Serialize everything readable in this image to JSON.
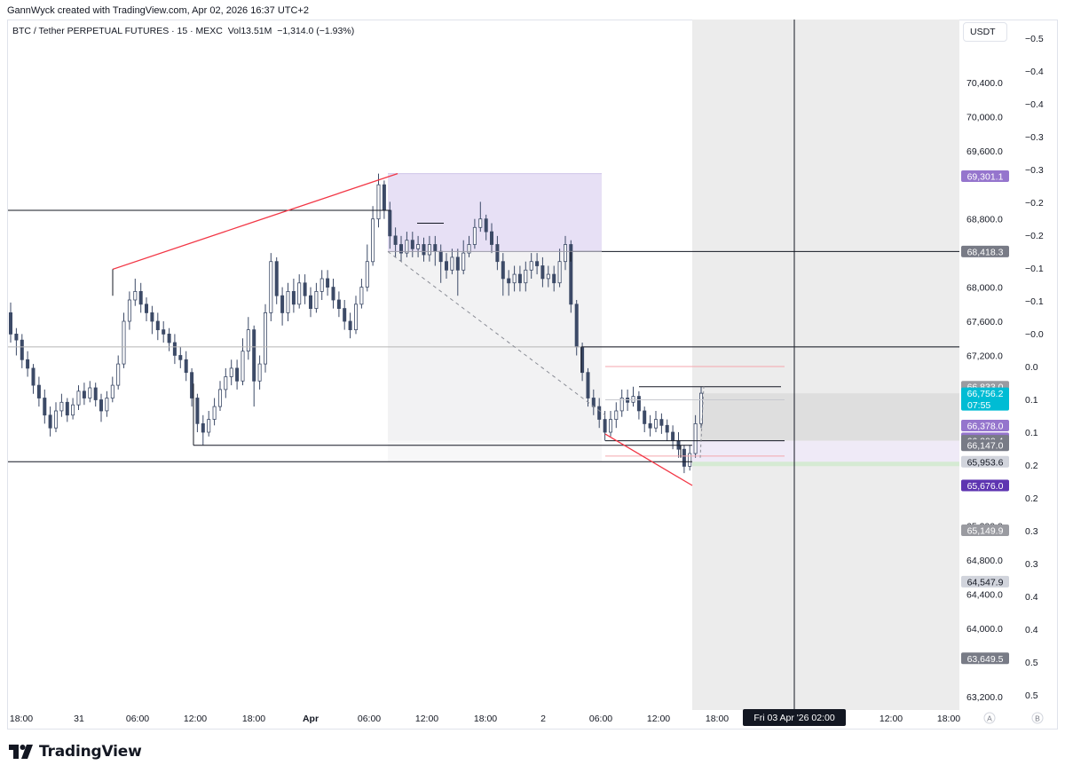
{
  "credit": "GannWyck created with TradingView.com, Apr 02, 2026 16:37 UTC+2",
  "symbol": {
    "title": "BTC / Tether PERPETUAL FUTURES · 15 · MEXC",
    "vol_label": "Vol",
    "vol_value": "13.51M",
    "change": "−1,314.0 (−1.93%)"
  },
  "currency": "USDT",
  "brand": "TradingView",
  "colors": {
    "candle": "#3c4a67",
    "trendline": "#f23645",
    "purple_zone": "#e7e0f5",
    "grey_zone": "#ececec",
    "price_tag_grey": "#787b86",
    "price_tag_purple": "#9575cd",
    "price_tag_dark_purple": "#5e35b1",
    "price_tag_cyan": "#00bcd4"
  },
  "chart_data": {
    "type": "candlestick",
    "timeframe": "15",
    "exchange": "MEXC",
    "ylim": [
      63000,
      70800
    ],
    "y_ticks": [
      "70,400.0",
      "70,000.0",
      "69,600.0",
      "68,800.0",
      "68,000.0",
      "67,600.0",
      "67,200.0",
      "65,200.0",
      "64,800.0",
      "64,400.0",
      "64,000.0",
      "63,200.0"
    ],
    "osc_ticks": [
      "−0.5",
      "−0.4",
      "−0.4",
      "−0.3",
      "−0.3",
      "−0.2",
      "−0.2",
      "−0.1",
      "−0.1",
      "−0.0",
      "0.0",
      "0.1",
      "0.1",
      "0.2",
      "0.2",
      "0.3",
      "0.3",
      "0.4",
      "0.4",
      "0.5",
      "0.5"
    ],
    "x_ticks": [
      "18:00",
      "31",
      "06:00",
      "12:00",
      "18:00",
      "Apr",
      "06:00",
      "12:00",
      "18:00",
      "2",
      "06:00",
      "12:00",
      "18:00",
      "12:00",
      "18:00"
    ],
    "cursor_label": "Fri 03 Apr '26  02:00",
    "scale_buttons": [
      "A",
      "B"
    ],
    "price_tags": [
      {
        "value": "69,301.1",
        "color": "#9575cd"
      },
      {
        "value": "68,418.3",
        "color": "#787b86"
      },
      {
        "value": "66,833.0",
        "color": "#9a9ba1"
      },
      {
        "value": "66,756.2",
        "color": "#00bcd4",
        "countdown": "07:55"
      },
      {
        "value": "66,378.0",
        "color": "#9575cd"
      },
      {
        "value": "66,228.0",
        "color": "#9575cd"
      },
      {
        "value": "66,200.4",
        "color": "#787b86"
      },
      {
        "value": "66,147.0",
        "color": "#787b86"
      },
      {
        "value": "65,953.6",
        "color": "#d1d4dc"
      },
      {
        "value": "65,676.0",
        "color": "#5e35b1"
      },
      {
        "value": "65,149.9",
        "color": "#9a9ba1"
      },
      {
        "value": "64,547.9",
        "color": "#d1d4dc"
      },
      {
        "value": "63,649.5",
        "color": "#787b86"
      }
    ],
    "levels": [
      68900,
      68418.3,
      67300,
      66833,
      66147,
      65953.6
    ],
    "trend_high": {
      "start": 68210,
      "end": 69331
    },
    "trend_low": {
      "start": 66278,
      "end": 65676
    },
    "candles": [
      [
        67700,
        67450,
        67820,
        67350
      ],
      [
        67450,
        67380,
        67520,
        67200
      ],
      [
        67380,
        67150,
        67450,
        67050
      ],
      [
        67150,
        67050,
        67250,
        66950
      ],
      [
        67050,
        66850,
        67100,
        66750
      ],
      [
        66850,
        66700,
        66950,
        66600
      ],
      [
        66700,
        66500,
        66800,
        66400
      ],
      [
        66500,
        66350,
        66600,
        66250
      ],
      [
        66350,
        66550,
        66650,
        66300
      ],
      [
        66550,
        66650,
        66750,
        66480
      ],
      [
        66650,
        66500,
        66700,
        66420
      ],
      [
        66500,
        66620,
        66700,
        66450
      ],
      [
        66620,
        66780,
        66850,
        66560
      ],
      [
        66780,
        66700,
        66880,
        66620
      ],
      [
        66700,
        66820,
        66900,
        66650
      ],
      [
        66820,
        66680,
        66880,
        66600
      ],
      [
        66680,
        66550,
        66750,
        66420
      ],
      [
        66550,
        66700,
        66780,
        66480
      ],
      [
        66700,
        66850,
        66950,
        66650
      ],
      [
        66850,
        67100,
        67200,
        66800
      ],
      [
        67100,
        67600,
        67700,
        67050
      ],
      [
        67600,
        67850,
        67950,
        67500
      ],
      [
        67850,
        67950,
        68100,
        67780
      ],
      [
        67950,
        67800,
        68050,
        67700
      ],
      [
        67800,
        67700,
        67880,
        67600
      ],
      [
        67700,
        67600,
        67780,
        67450
      ],
      [
        67600,
        67500,
        67700,
        67380
      ],
      [
        67500,
        67450,
        67600,
        67350
      ],
      [
        67450,
        67350,
        67520,
        67250
      ],
      [
        67350,
        67200,
        67450,
        67100
      ],
      [
        67200,
        67150,
        67300,
        67050
      ],
      [
        67150,
        67000,
        67250,
        66900
      ],
      [
        67000,
        66700,
        67050,
        66600
      ],
      [
        66700,
        66400,
        66750,
        66300
      ],
      [
        66400,
        66300,
        66500,
        66150
      ],
      [
        66300,
        66450,
        66550,
        66250
      ],
      [
        66450,
        66600,
        66700,
        66380
      ],
      [
        66600,
        66800,
        66900,
        66550
      ],
      [
        66800,
        66950,
        67050,
        66700
      ],
      [
        66950,
        67050,
        67150,
        66850
      ],
      [
        67050,
        66900,
        67150,
        66800
      ],
      [
        66900,
        67250,
        67400,
        66850
      ],
      [
        67250,
        67500,
        67650,
        67150
      ],
      [
        67500,
        66900,
        67550,
        66600
      ],
      [
        66900,
        67100,
        67200,
        66800
      ],
      [
        67100,
        67700,
        67800,
        67000
      ],
      [
        67700,
        68300,
        68400,
        67600
      ],
      [
        68300,
        67900,
        68350,
        67800
      ],
      [
        67900,
        67700,
        68000,
        67550
      ],
      [
        67700,
        67950,
        68050,
        67600
      ],
      [
        67950,
        67800,
        68100,
        67700
      ],
      [
        67800,
        68050,
        68150,
        67750
      ],
      [
        68050,
        67900,
        68150,
        67800
      ],
      [
        67900,
        67750,
        68000,
        67650
      ],
      [
        67750,
        67950,
        68050,
        67700
      ],
      [
        67950,
        68100,
        68200,
        67850
      ],
      [
        68100,
        68000,
        68200,
        67900
      ],
      [
        68000,
        67850,
        68100,
        67750
      ],
      [
        67850,
        67750,
        67950,
        67650
      ],
      [
        67750,
        67600,
        67850,
        67500
      ],
      [
        67600,
        67500,
        67700,
        67400
      ],
      [
        67500,
        67800,
        67900,
        67450
      ],
      [
        67800,
        68000,
        68100,
        67750
      ],
      [
        68000,
        68300,
        68500,
        67950
      ],
      [
        68300,
        68800,
        68950,
        68250
      ],
      [
        68800,
        69200,
        69331,
        68700
      ],
      [
        69200,
        68900,
        69250,
        68800
      ],
      [
        68900,
        68600,
        69000,
        68450
      ],
      [
        68600,
        68500,
        68700,
        68350
      ],
      [
        68500,
        68400,
        68600,
        68300
      ],
      [
        68400,
        68550,
        68650,
        68350
      ],
      [
        68550,
        68450,
        68650,
        68350
      ],
      [
        68450,
        68500,
        68600,
        68350
      ],
      [
        68500,
        68380,
        68580,
        68300
      ],
      [
        68380,
        68500,
        68600,
        68300
      ],
      [
        68500,
        68420,
        68600,
        68250
      ],
      [
        68420,
        68300,
        68500,
        68050
      ],
      [
        68300,
        68200,
        68400,
        68100
      ],
      [
        68200,
        68350,
        68450,
        68150
      ],
      [
        68350,
        68200,
        68450,
        67900
      ],
      [
        68200,
        68400,
        68550,
        68150
      ],
      [
        68400,
        68500,
        68600,
        68350
      ],
      [
        68500,
        68700,
        68800,
        68450
      ],
      [
        68700,
        68800,
        69000,
        68650
      ],
      [
        68800,
        68650,
        68850,
        68550
      ],
      [
        68650,
        68500,
        68750,
        68400
      ],
      [
        68500,
        68300,
        68600,
        68200
      ],
      [
        68300,
        68100,
        68400,
        67900
      ],
      [
        68100,
        68050,
        68200,
        67900
      ],
      [
        68050,
        68150,
        68250,
        67950
      ],
      [
        68150,
        68050,
        68250,
        67950
      ],
      [
        68050,
        68200,
        68300,
        67950
      ],
      [
        68200,
        68300,
        68400,
        68100
      ],
      [
        68300,
        68250,
        68400,
        68150
      ],
      [
        68250,
        68100,
        68350,
        68000
      ],
      [
        68100,
        68150,
        68250,
        68000
      ],
      [
        68150,
        68050,
        68250,
        67950
      ],
      [
        68050,
        68300,
        68450,
        68000
      ],
      [
        68300,
        68500,
        68600,
        68200
      ],
      [
        68500,
        67800,
        68550,
        67700
      ],
      [
        67800,
        67300,
        67850,
        67200
      ],
      [
        67300,
        67000,
        67350,
        66900
      ],
      [
        67000,
        66700,
        67050,
        66600
      ],
      [
        66700,
        66600,
        66800,
        66500
      ],
      [
        66600,
        66450,
        66700,
        66350
      ],
      [
        66450,
        66300,
        66550,
        66200
      ],
      [
        66300,
        66450,
        66550,
        66250
      ],
      [
        66450,
        66550,
        66650,
        66350
      ],
      [
        66550,
        66700,
        66800,
        66480
      ],
      [
        66700,
        66650,
        66800,
        66550
      ],
      [
        66650,
        66720,
        66833,
        66600
      ],
      [
        66720,
        66550,
        66780,
        66450
      ],
      [
        66550,
        66400,
        66600,
        66300
      ],
      [
        66400,
        66350,
        66500,
        66250
      ],
      [
        66350,
        66450,
        66550,
        66300
      ],
      [
        66450,
        66380,
        66520,
        66280
      ],
      [
        66380,
        66300,
        66450,
        66200
      ],
      [
        66300,
        66200,
        66380,
        66100
      ],
      [
        66200,
        66100,
        66300,
        66000
      ],
      [
        66100,
        65900,
        66150,
        65820
      ],
      [
        65900,
        66050,
        66150,
        65850
      ],
      [
        66050,
        66400,
        66500,
        66000
      ],
      [
        66400,
        66756,
        66833,
        66350
      ]
    ]
  }
}
